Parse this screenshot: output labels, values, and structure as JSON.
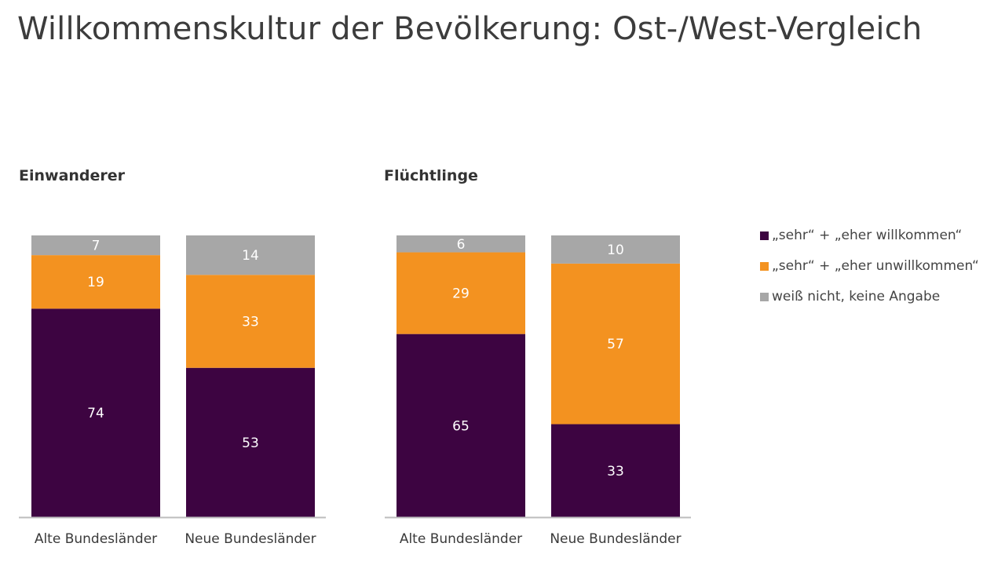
{
  "title": "Willkommenskultur der Bevölkerung: Ost-/West-Vergleich",
  "colors": {
    "welcome": "#3d0441",
    "unwelcome": "#f39220",
    "unknown": "#a7a7a7",
    "axis": "#bdbdbd"
  },
  "legend": [
    {
      "label": "„sehr“ + „eher willkommen“",
      "key": "welcome"
    },
    {
      "label": "„sehr“ + „eher unwillkommen“",
      "key": "unwelcome"
    },
    {
      "label": "weiß nicht, keine Angabe",
      "key": "unknown"
    }
  ],
  "chart_data": [
    {
      "type": "bar",
      "stacked": true,
      "title": "Einwanderer",
      "categories": [
        "Alte Bundesländer",
        "Neue Bundesländer"
      ],
      "series": [
        {
          "name": "„sehr“ + „eher willkommen“",
          "key": "welcome",
          "values": [
            74,
            53
          ]
        },
        {
          "name": "„sehr“ + „eher unwillkommen“",
          "key": "unwelcome",
          "values": [
            19,
            33
          ]
        },
        {
          "name": "weiß nicht, keine Angabe",
          "key": "unknown",
          "values": [
            7,
            14
          ]
        }
      ],
      "ylim": [
        0,
        100
      ],
      "xlabel": "",
      "ylabel": "",
      "legend_position": "right"
    },
    {
      "type": "bar",
      "stacked": true,
      "title": "Flüchtlinge",
      "categories": [
        "Alte Bundesländer",
        "Neue Bundesländer"
      ],
      "series": [
        {
          "name": "„sehr“ + „eher willkommen“",
          "key": "welcome",
          "values": [
            65,
            33
          ]
        },
        {
          "name": "„sehr“ + „eher unwillkommen“",
          "key": "unwelcome",
          "values": [
            29,
            57
          ]
        },
        {
          "name": "weiß nicht, keine Angabe",
          "key": "unknown",
          "values": [
            6,
            10
          ]
        }
      ],
      "ylim": [
        0,
        100
      ],
      "xlabel": "",
      "ylabel": "",
      "legend_position": "right"
    }
  ]
}
